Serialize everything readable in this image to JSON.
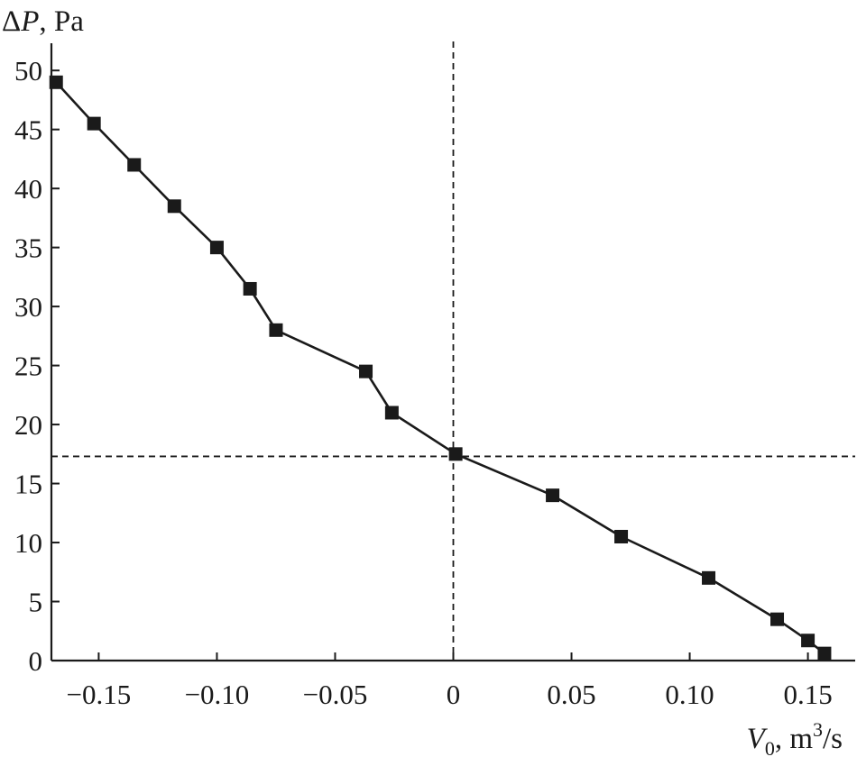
{
  "chart_data": {
    "type": "line",
    "title": "",
    "ylabel": {
      "prefix": "Δ",
      "var": "P",
      "unit": ", Pa"
    },
    "xlabel": {
      "var": "V",
      "sub": "0",
      "unit": ", m",
      "sup": "3",
      "unit_end": "/s"
    },
    "xlim": [
      -0.17,
      0.17
    ],
    "ylim": [
      0,
      52
    ],
    "x_ticks": [
      {
        "value": -0.15,
        "label": "−0.15"
      },
      {
        "value": -0.1,
        "label": "−0.10"
      },
      {
        "value": -0.05,
        "label": "−0.05"
      },
      {
        "value": 0,
        "label": "0"
      },
      {
        "value": 0.05,
        "label": "0.05"
      },
      {
        "value": 0.1,
        "label": "0.10"
      },
      {
        "value": 0.15,
        "label": "0.15"
      }
    ],
    "y_ticks": [
      {
        "value": 0,
        "label": "0"
      },
      {
        "value": 5,
        "label": "5"
      },
      {
        "value": 10,
        "label": "10"
      },
      {
        "value": 15,
        "label": "15"
      },
      {
        "value": 20,
        "label": "20"
      },
      {
        "value": 25,
        "label": "25"
      },
      {
        "value": 30,
        "label": "30"
      },
      {
        "value": 35,
        "label": "35"
      },
      {
        "value": 40,
        "label": "40"
      },
      {
        "value": 45,
        "label": "45"
      },
      {
        "value": 50,
        "label": "50"
      }
    ],
    "grid": false,
    "reference_lines": {
      "x": 0,
      "y": 17.3
    },
    "series": [
      {
        "marker": "square",
        "color": "#1a1a1a",
        "x": [
          -0.168,
          -0.152,
          -0.135,
          -0.118,
          -0.1,
          -0.086,
          -0.075,
          -0.037,
          -0.026,
          0.001,
          0.042,
          0.071,
          0.108,
          0.137,
          0.15,
          0.157
        ],
        "y": [
          49,
          45.5,
          42,
          38.5,
          35,
          31.5,
          28,
          24.5,
          21,
          17.5,
          14,
          10.5,
          7,
          3.5,
          1.7,
          0.6
        ]
      }
    ]
  }
}
